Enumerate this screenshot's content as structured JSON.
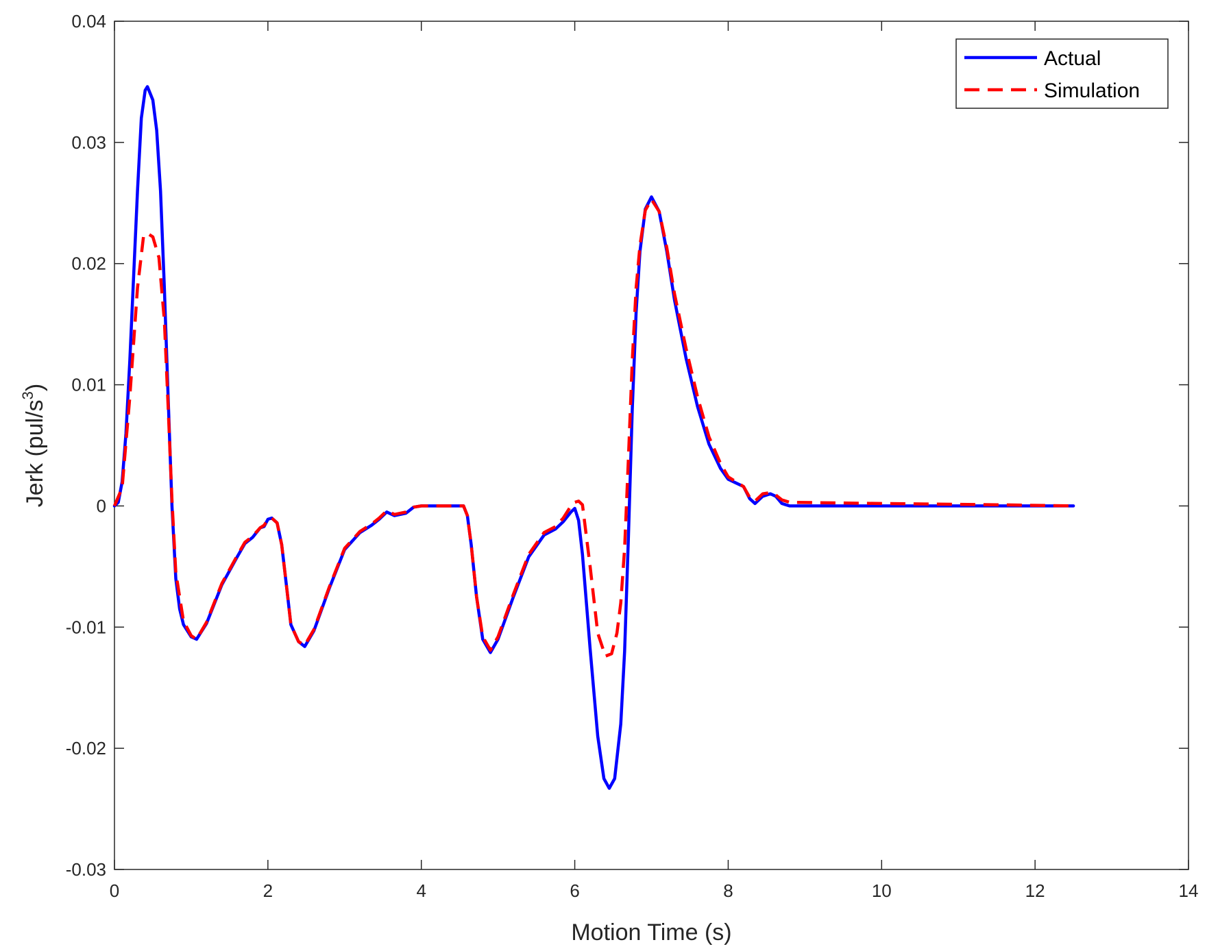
{
  "chart_data": {
    "type": "line",
    "title": "",
    "xlabel": "Motion Time (s)",
    "ylabel_prefix": "Jerk (pul/s",
    "ylabel_sup": "3",
    "ylabel_suffix": ")",
    "xlim": [
      0,
      14
    ],
    "ylim": [
      -0.03,
      0.04
    ],
    "x_ticks": [
      0,
      2,
      4,
      6,
      8,
      10,
      12,
      14
    ],
    "x_tick_labels": [
      "0",
      "2",
      "4",
      "6",
      "8",
      "10",
      "12",
      "14"
    ],
    "y_ticks": [
      -0.03,
      -0.02,
      -0.01,
      0,
      0.01,
      0.02,
      0.03,
      0.04
    ],
    "y_tick_labels": [
      "-0.03",
      "-0.02",
      "-0.01",
      "0",
      "0.01",
      "0.02",
      "0.03",
      "0.04"
    ],
    "grid": false,
    "legend_position": "top-right",
    "series": [
      {
        "name": "Actual",
        "color": "#0000ff",
        "style": "solid",
        "points": [
          [
            0,
            0
          ],
          [
            0.05,
            0.0003
          ],
          [
            0.1,
            0.002
          ],
          [
            0.15,
            0.006
          ],
          [
            0.2,
            0.012
          ],
          [
            0.25,
            0.019
          ],
          [
            0.3,
            0.026
          ],
          [
            0.35,
            0.032
          ],
          [
            0.4,
            0.0343
          ],
          [
            0.43,
            0.0346
          ],
          [
            0.5,
            0.0335
          ],
          [
            0.55,
            0.031
          ],
          [
            0.6,
            0.026
          ],
          [
            0.65,
            0.018
          ],
          [
            0.7,
            0.009
          ],
          [
            0.75,
            0.0
          ],
          [
            0.8,
            -0.006
          ],
          [
            0.85,
            -0.0085
          ],
          [
            0.9,
            -0.0098
          ],
          [
            1.0,
            -0.0108
          ],
          [
            1.07,
            -0.011
          ],
          [
            1.2,
            -0.0097
          ],
          [
            1.4,
            -0.0065
          ],
          [
            1.6,
            -0.0042
          ],
          [
            1.7,
            -0.0031
          ],
          [
            1.8,
            -0.0026
          ],
          [
            1.9,
            -0.0018
          ],
          [
            1.95,
            -0.0017
          ],
          [
            2.0,
            -0.0011
          ],
          [
            2.05,
            -0.001
          ],
          [
            2.12,
            -0.0014
          ],
          [
            2.18,
            -0.0032
          ],
          [
            2.25,
            -0.007
          ],
          [
            2.3,
            -0.0098
          ],
          [
            2.4,
            -0.0112
          ],
          [
            2.48,
            -0.0116
          ],
          [
            2.6,
            -0.0103
          ],
          [
            2.8,
            -0.0068
          ],
          [
            3.0,
            -0.0036
          ],
          [
            3.2,
            -0.0022
          ],
          [
            3.35,
            -0.0016
          ],
          [
            3.45,
            -0.0011
          ],
          [
            3.55,
            -0.0005
          ],
          [
            3.65,
            -0.0008
          ],
          [
            3.8,
            -0.0006
          ],
          [
            3.9,
            -0.0001
          ],
          [
            4.0,
            0
          ],
          [
            4.55,
            0
          ],
          [
            4.6,
            -0.0008
          ],
          [
            4.65,
            -0.0032
          ],
          [
            4.72,
            -0.0075
          ],
          [
            4.8,
            -0.011
          ],
          [
            4.9,
            -0.0121
          ],
          [
            5.0,
            -0.011
          ],
          [
            5.2,
            -0.0075
          ],
          [
            5.4,
            -0.0042
          ],
          [
            5.6,
            -0.0024
          ],
          [
            5.75,
            -0.0019
          ],
          [
            5.85,
            -0.0013
          ],
          [
            5.95,
            -0.0005
          ],
          [
            6.0,
            -0.0002
          ],
          [
            6.05,
            -0.0012
          ],
          [
            6.1,
            -0.004
          ],
          [
            6.2,
            -0.0118
          ],
          [
            6.3,
            -0.019
          ],
          [
            6.38,
            -0.0225
          ],
          [
            6.45,
            -0.0233
          ],
          [
            6.52,
            -0.0225
          ],
          [
            6.6,
            -0.018
          ],
          [
            6.65,
            -0.012
          ],
          [
            6.7,
            -0.0025
          ],
          [
            6.75,
            0.008
          ],
          [
            6.8,
            0.016
          ],
          [
            6.85,
            0.021
          ],
          [
            6.92,
            0.0245
          ],
          [
            7.0,
            0.0255
          ],
          [
            7.1,
            0.0243
          ],
          [
            7.2,
            0.021
          ],
          [
            7.3,
            0.017
          ],
          [
            7.45,
            0.0122
          ],
          [
            7.6,
            0.0082
          ],
          [
            7.75,
            0.0051
          ],
          [
            7.9,
            0.0031
          ],
          [
            8.0,
            0.0022
          ],
          [
            8.1,
            0.0019
          ],
          [
            8.2,
            0.0016
          ],
          [
            8.28,
            0.0006
          ],
          [
            8.35,
            0.0002
          ],
          [
            8.45,
            0.0008
          ],
          [
            8.55,
            0.001
          ],
          [
            8.62,
            0.0008
          ],
          [
            8.7,
            0.0002
          ],
          [
            8.8,
            0
          ],
          [
            9.5,
            0
          ],
          [
            10.5,
            0
          ],
          [
            11.5,
            0
          ],
          [
            12.5,
            0
          ]
        ]
      },
      {
        "name": "Simulation",
        "color": "#ff0000",
        "style": "dashed",
        "points": [
          [
            0,
            0
          ],
          [
            0.1,
            0.0015
          ],
          [
            0.2,
            0.009
          ],
          [
            0.3,
            0.018
          ],
          [
            0.38,
            0.0223
          ],
          [
            0.43,
            0.0225
          ],
          [
            0.5,
            0.0222
          ],
          [
            0.58,
            0.0205
          ],
          [
            0.65,
            0.0153
          ],
          [
            0.7,
            0.0082
          ],
          [
            0.75,
            0.0005
          ],
          [
            0.8,
            -0.0055
          ],
          [
            0.9,
            -0.0095
          ],
          [
            1.0,
            -0.0107
          ],
          [
            1.07,
            -0.011
          ],
          [
            1.2,
            -0.0096
          ],
          [
            1.4,
            -0.0064
          ],
          [
            1.6,
            -0.0041
          ],
          [
            1.7,
            -0.003
          ],
          [
            1.8,
            -0.0025
          ],
          [
            1.9,
            -0.0018
          ],
          [
            1.95,
            -0.0016
          ],
          [
            2.0,
            -0.0011
          ],
          [
            2.05,
            -0.001
          ],
          [
            2.12,
            -0.0014
          ],
          [
            2.18,
            -0.0032
          ],
          [
            2.25,
            -0.007
          ],
          [
            2.3,
            -0.0098
          ],
          [
            2.4,
            -0.0112
          ],
          [
            2.48,
            -0.0115
          ],
          [
            2.6,
            -0.0102
          ],
          [
            2.8,
            -0.0067
          ],
          [
            3.0,
            -0.0035
          ],
          [
            3.2,
            -0.0021
          ],
          [
            3.35,
            -0.0015
          ],
          [
            3.45,
            -0.001
          ],
          [
            3.55,
            -0.0004
          ],
          [
            3.65,
            -0.0007
          ],
          [
            3.8,
            -0.0005
          ],
          [
            3.9,
            -0.0001
          ],
          [
            4.0,
            0
          ],
          [
            4.55,
            0
          ],
          [
            4.6,
            -0.0008
          ],
          [
            4.65,
            -0.0032
          ],
          [
            4.72,
            -0.0075
          ],
          [
            4.8,
            -0.0108
          ],
          [
            4.9,
            -0.0119
          ],
          [
            5.0,
            -0.0108
          ],
          [
            5.2,
            -0.0073
          ],
          [
            5.4,
            -0.004
          ],
          [
            5.6,
            -0.0022
          ],
          [
            5.75,
            -0.0017
          ],
          [
            5.85,
            -0.001
          ],
          [
            5.95,
            0.0
          ],
          [
            6.0,
            0.0003
          ],
          [
            6.05,
            0.0004
          ],
          [
            6.1,
            0.0001
          ],
          [
            6.2,
            -0.005
          ],
          [
            6.3,
            -0.0105
          ],
          [
            6.4,
            -0.0124
          ],
          [
            6.48,
            -0.0122
          ],
          [
            6.55,
            -0.0105
          ],
          [
            6.6,
            -0.008
          ],
          [
            6.65,
            -0.0035
          ],
          [
            6.7,
            0.004
          ],
          [
            6.75,
            0.012
          ],
          [
            6.8,
            0.018
          ],
          [
            6.85,
            0.0215
          ],
          [
            6.92,
            0.0244
          ],
          [
            7.0,
            0.0253
          ],
          [
            7.1,
            0.0243
          ],
          [
            7.2,
            0.0213
          ],
          [
            7.3,
            0.0175
          ],
          [
            7.45,
            0.013
          ],
          [
            7.6,
            0.009
          ],
          [
            7.75,
            0.0057
          ],
          [
            7.9,
            0.0035
          ],
          [
            8.0,
            0.0024
          ],
          [
            8.1,
            0.002
          ],
          [
            8.2,
            0.0016
          ],
          [
            8.28,
            0.0007
          ],
          [
            8.35,
            0.0004
          ],
          [
            8.45,
            0.001
          ],
          [
            8.55,
            0.0011
          ],
          [
            8.62,
            0.0009
          ],
          [
            8.7,
            0.0005
          ],
          [
            8.8,
            0.0003
          ],
          [
            10.0,
            0.0002
          ],
          [
            11.5,
            0.0001
          ],
          [
            12.5,
            0
          ]
        ]
      }
    ]
  }
}
